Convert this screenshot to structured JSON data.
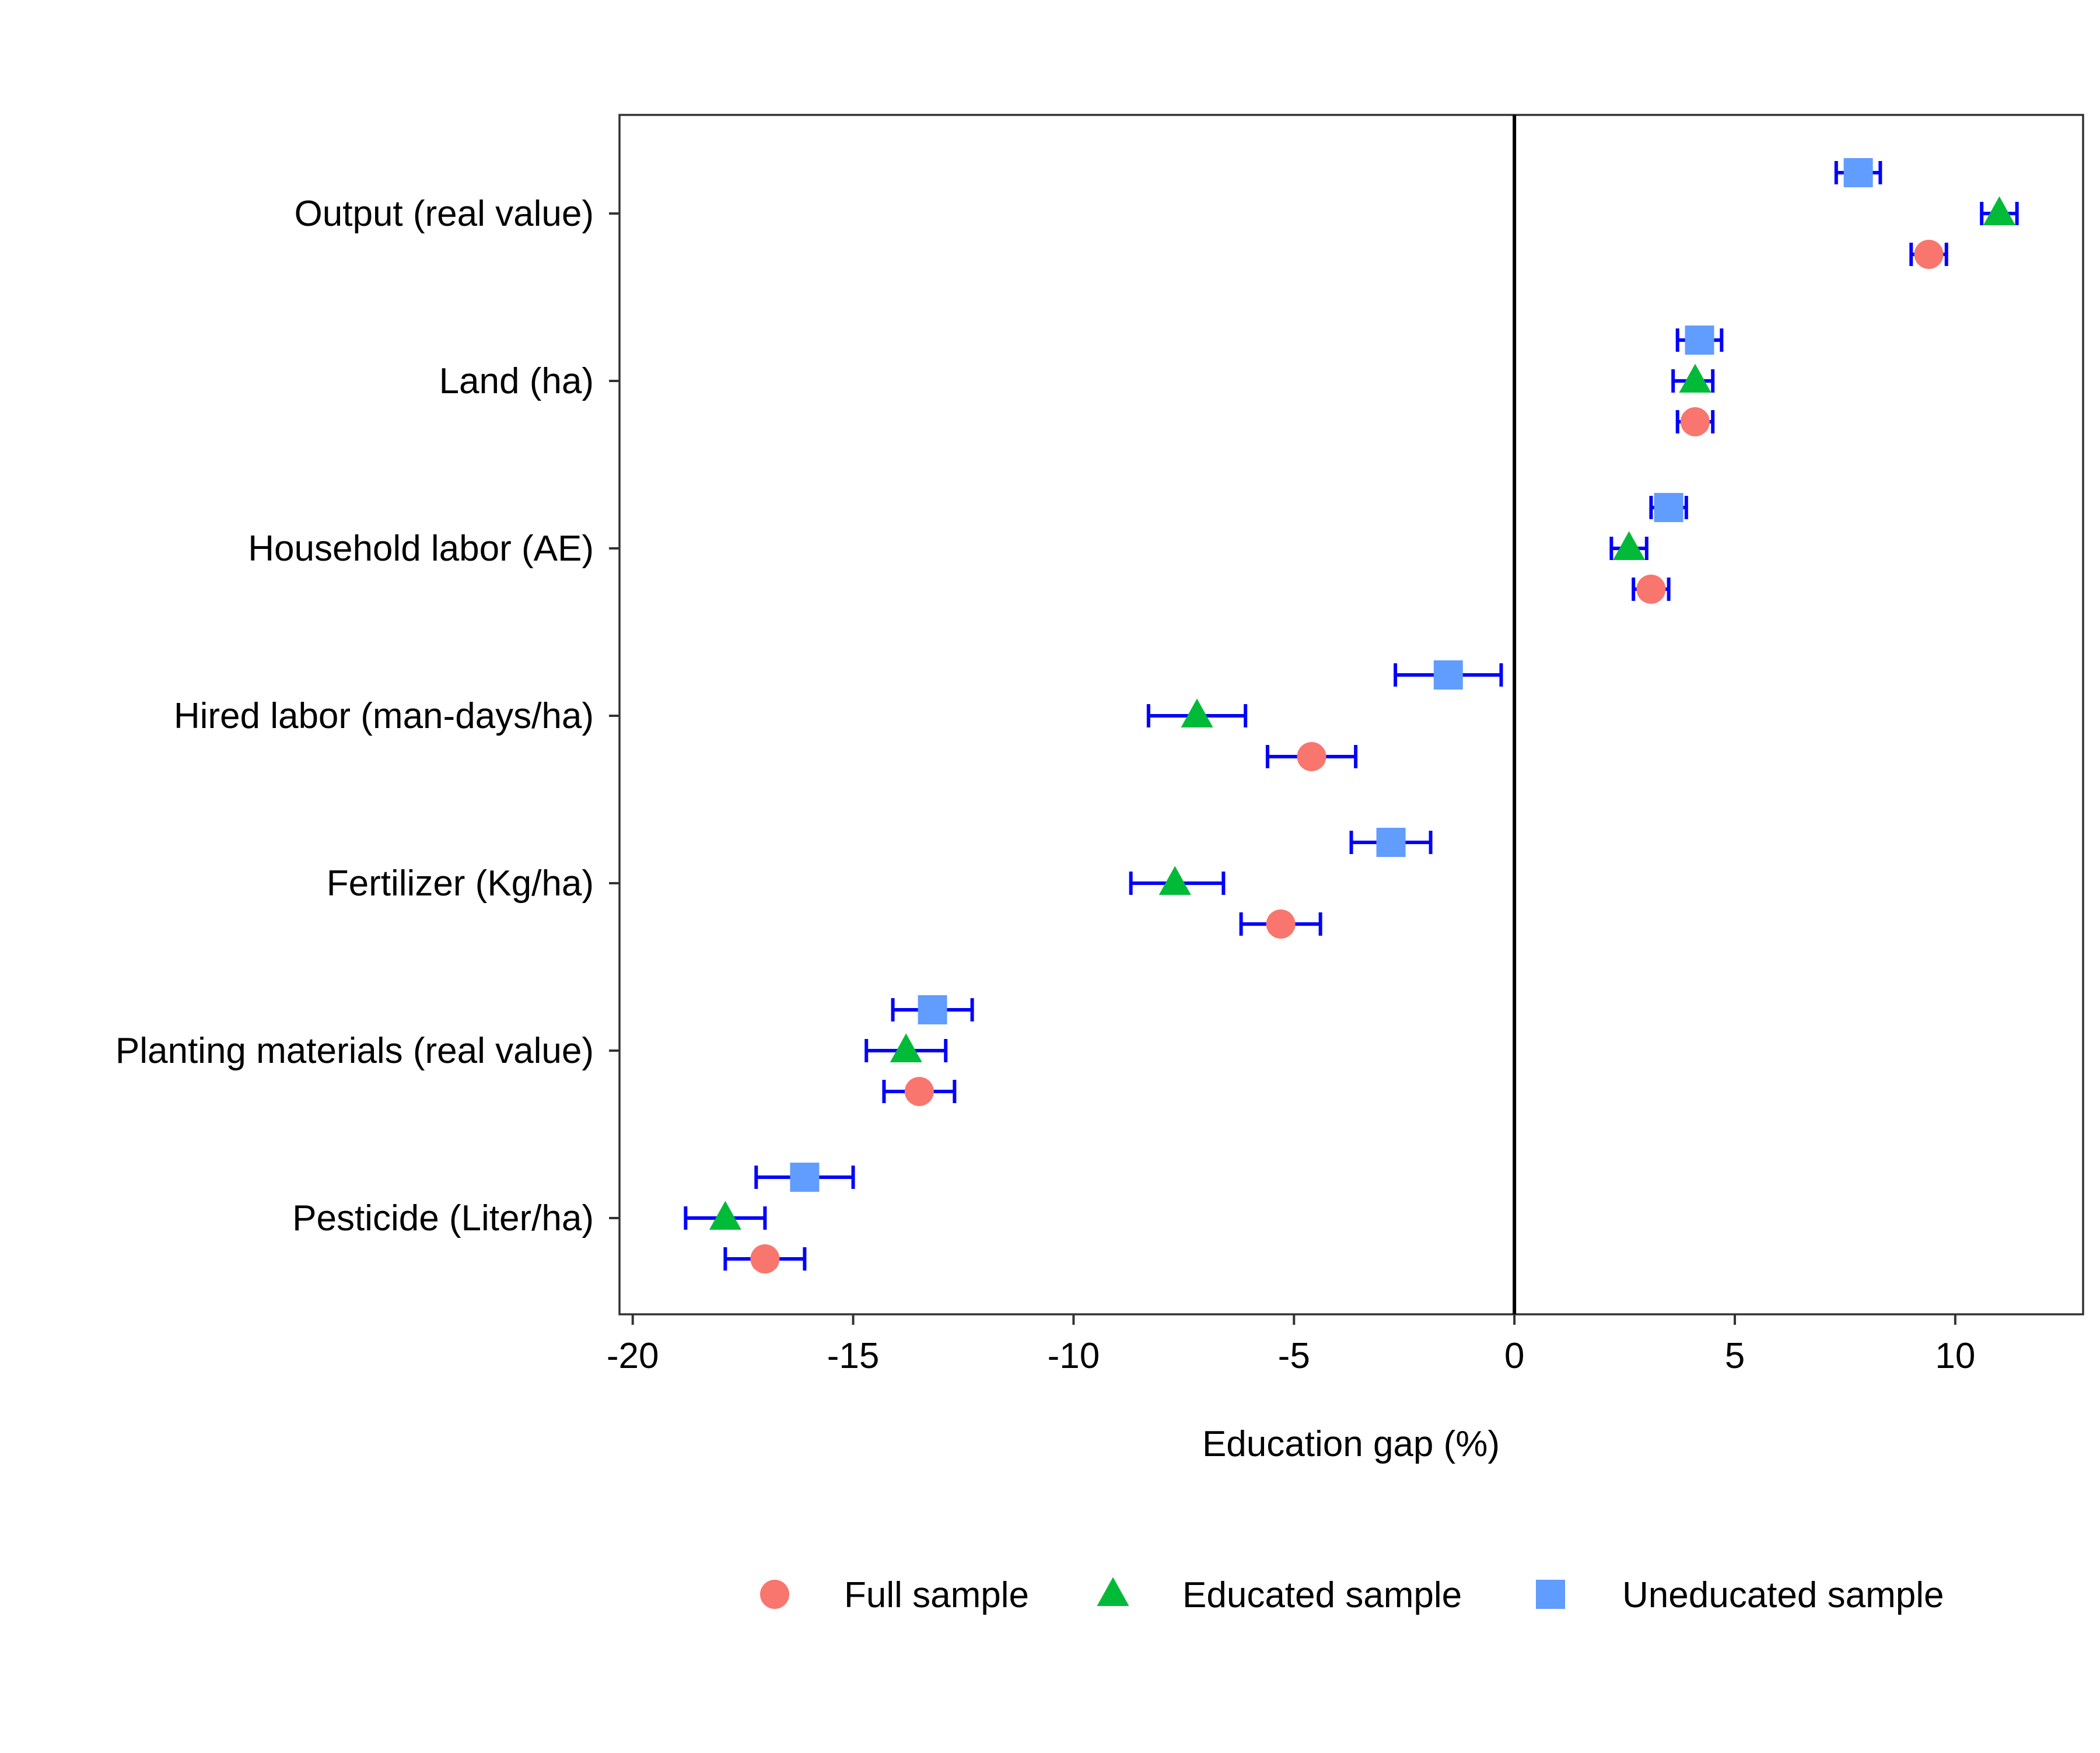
{
  "chart_data": {
    "type": "scatter",
    "title": "",
    "xlabel": "Education gap (%)",
    "ylabel": "",
    "xlim": [
      -20.3,
      12.9
    ],
    "x_ticks": [
      -20,
      -15,
      -10,
      -5,
      0,
      5,
      10
    ],
    "x_tick_labels": [
      "-20",
      "-15",
      "-10",
      "-5",
      "0",
      "5",
      "10"
    ],
    "reference_line_x": 0,
    "grid": false,
    "legend_position": "bottom",
    "categories": [
      "Output (real value)",
      "Land (ha)",
      "Household labor (AE)",
      "Hired labor (man-days/ha)",
      "Fertilizer (Kg/ha)",
      "Planting materials (real value)",
      "Pesticide (Liter/ha)"
    ],
    "error_bar_color": "#0000ff",
    "series": [
      {
        "name": "Full sample",
        "marker": "circle",
        "color": "#F8766D",
        "values": [
          9.4,
          4.1,
          3.1,
          -4.6,
          -5.3,
          -13.5,
          -17.0
        ],
        "lower": [
          9.0,
          3.7,
          2.7,
          -5.6,
          -6.2,
          -14.3,
          -17.9
        ],
        "upper": [
          9.8,
          4.5,
          3.5,
          -3.6,
          -4.4,
          -12.7,
          -16.1
        ]
      },
      {
        "name": "Educated sample",
        "marker": "triangle",
        "color": "#00BA38",
        "values": [
          11.0,
          4.1,
          2.6,
          -7.2,
          -7.7,
          -13.8,
          -17.9
        ],
        "lower": [
          10.6,
          3.6,
          2.2,
          -8.3,
          -8.7,
          -14.7,
          -18.8
        ],
        "upper": [
          11.4,
          4.5,
          3.0,
          -6.1,
          -6.6,
          -12.9,
          -17.0
        ]
      },
      {
        "name": "Uneducated sample",
        "marker": "square",
        "color": "#619CFF",
        "values": [
          7.8,
          4.2,
          3.5,
          -1.5,
          -2.8,
          -13.2,
          -16.1
        ],
        "lower": [
          7.3,
          3.7,
          3.1,
          -2.7,
          -3.7,
          -14.1,
          -17.2
        ],
        "upper": [
          8.3,
          4.7,
          3.9,
          -0.3,
          -1.9,
          -12.3,
          -15.0
        ]
      }
    ]
  }
}
